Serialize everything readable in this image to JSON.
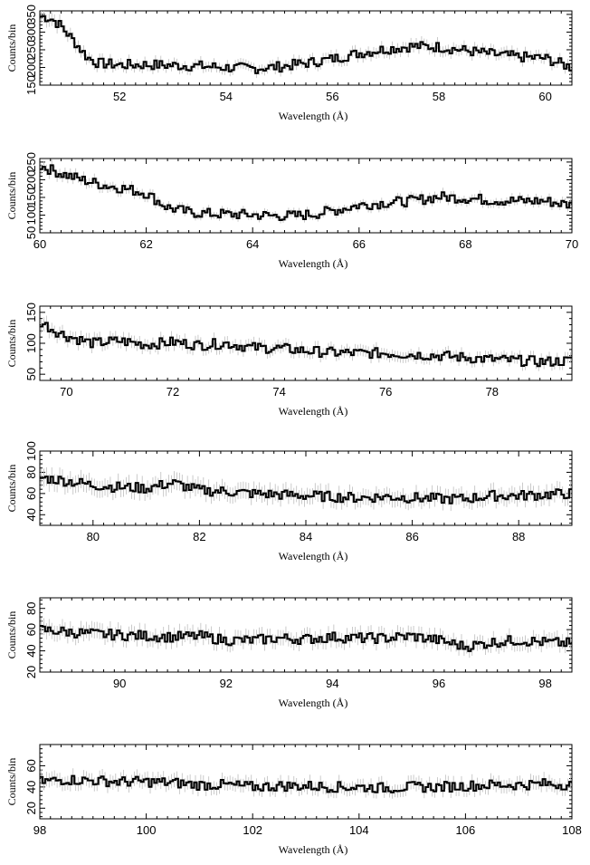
{
  "chart_data": [
    {
      "type": "line",
      "xlabel": "Wavelength (Å)",
      "ylabel": "Counts/bin",
      "xlim": [
        50.5,
        60.5
      ],
      "ylim": [
        150,
        360
      ],
      "xticks": [
        "52",
        "54",
        "56",
        "58",
        "60"
      ],
      "yticks": [
        "150",
        "200",
        "250",
        "300",
        "350"
      ],
      "series": [
        {
          "values": [
            [
              50.5,
              345
            ],
            [
              50.7,
              340
            ],
            [
              50.9,
              318
            ],
            [
              51.0,
              300
            ],
            [
              51.2,
              265
            ],
            [
              51.4,
              228
            ],
            [
              51.6,
              212
            ],
            [
              51.8,
              210
            ],
            [
              52.0,
              207
            ],
            [
              52.5,
              208
            ],
            [
              53.0,
              206
            ],
            [
              53.5,
              204
            ],
            [
              54.0,
              200
            ],
            [
              54.5,
              197
            ],
            [
              55.0,
              202
            ],
            [
              55.5,
              212
            ],
            [
              56.0,
              224
            ],
            [
              56.5,
              240
            ],
            [
              57.0,
              252
            ],
            [
              57.5,
              260
            ],
            [
              58.0,
              258
            ],
            [
              58.5,
              248
            ],
            [
              59.0,
              238
            ],
            [
              59.5,
              230
            ],
            [
              60.0,
              226
            ],
            [
              60.5,
              200
            ]
          ]
        }
      ]
    },
    {
      "type": "line",
      "xlabel": "Wavelength (Å)",
      "ylabel": "Counts/bin",
      "xlim": [
        60,
        70
      ],
      "ylim": [
        50,
        260
      ],
      "xticks": [
        "60",
        "62",
        "64",
        "66",
        "68",
        "70"
      ],
      "yticks": [
        "50",
        "100",
        "150",
        "200",
        "250"
      ],
      "series": [
        {
          "values": [
            [
              60.0,
              240
            ],
            [
              60.4,
              218
            ],
            [
              60.8,
              200
            ],
            [
              61.2,
              185
            ],
            [
              61.6,
              175
            ],
            [
              62.0,
              162
            ],
            [
              62.4,
              122
            ],
            [
              62.8,
              108
            ],
            [
              63.2,
              104
            ],
            [
              63.6,
              102
            ],
            [
              64.0,
              101
            ],
            [
              64.4,
              98
            ],
            [
              64.8,
              98
            ],
            [
              65.2,
              104
            ],
            [
              65.6,
              115
            ],
            [
              66.0,
              128
            ],
            [
              66.5,
              135
            ],
            [
              67.0,
              140
            ],
            [
              67.5,
              152
            ],
            [
              68.0,
              148
            ],
            [
              68.5,
              142
            ],
            [
              69.0,
              140
            ],
            [
              69.5,
              140
            ],
            [
              70.0,
              128
            ]
          ]
        }
      ]
    },
    {
      "type": "line",
      "xlabel": "Wavelength (Å)",
      "ylabel": "Counts/bin",
      "xlim": [
        69.5,
        79.5
      ],
      "ylim": [
        40,
        160
      ],
      "xticks": [
        "70",
        "72",
        "74",
        "76",
        "78"
      ],
      "yticks": [
        "50",
        "100",
        "150"
      ],
      "series": [
        {
          "values": [
            [
              69.5,
              135
            ],
            [
              69.8,
              120
            ],
            [
              70.0,
              112
            ],
            [
              70.5,
              100
            ],
            [
              71.0,
              104
            ],
            [
              71.5,
              98
            ],
            [
              72.0,
              102
            ],
            [
              72.5,
              97
            ],
            [
              73.0,
              100
            ],
            [
              73.5,
              93
            ],
            [
              74.0,
              92
            ],
            [
              74.5,
              88
            ],
            [
              75.0,
              85
            ],
            [
              75.5,
              84
            ],
            [
              76.0,
              84
            ],
            [
              76.5,
              82
            ],
            [
              77.0,
              80
            ],
            [
              77.5,
              77
            ],
            [
              78.0,
              74
            ],
            [
              78.5,
              72
            ],
            [
              79.0,
              70
            ],
            [
              79.5,
              72
            ]
          ]
        }
      ]
    },
    {
      "type": "line",
      "xlabel": "Wavelength (Å)",
      "ylabel": "Counts/bin",
      "xlim": [
        79,
        89
      ],
      "ylim": [
        30,
        100
      ],
      "xticks": [
        "80",
        "82",
        "84",
        "86",
        "88"
      ],
      "yticks": [
        "40",
        "60",
        "80",
        "100"
      ],
      "series": [
        {
          "values": [
            [
              79.0,
              75
            ],
            [
              79.5,
              72
            ],
            [
              80.0,
              68
            ],
            [
              80.5,
              66
            ],
            [
              81.0,
              65
            ],
            [
              81.5,
              70
            ],
            [
              82.0,
              63
            ],
            [
              82.5,
              62
            ],
            [
              83.0,
              60
            ],
            [
              83.5,
              59
            ],
            [
              84.0,
              58
            ],
            [
              84.5,
              57
            ],
            [
              85.0,
              56
            ],
            [
              85.5,
              57
            ],
            [
              86.0,
              56
            ],
            [
              86.5,
              55
            ],
            [
              87.0,
              55
            ],
            [
              87.5,
              58
            ],
            [
              88.0,
              58
            ],
            [
              88.5,
              59
            ],
            [
              89.0,
              60
            ]
          ]
        }
      ]
    },
    {
      "type": "line",
      "xlabel": "Wavelength (Å)",
      "ylabel": "Counts/bin",
      "xlim": [
        88.5,
        98.5
      ],
      "ylim": [
        20,
        90
      ],
      "xticks": [
        "90",
        "92",
        "94",
        "96",
        "98"
      ],
      "yticks": [
        "20",
        "40",
        "60",
        "80"
      ],
      "series": [
        {
          "values": [
            [
              88.5,
              60
            ],
            [
              89.0,
              58
            ],
            [
              89.5,
              56
            ],
            [
              90.0,
              55
            ],
            [
              90.5,
              54
            ],
            [
              91.0,
              53
            ],
            [
              91.5,
              54
            ],
            [
              92.0,
              50
            ],
            [
              92.5,
              50
            ],
            [
              93.0,
              52
            ],
            [
              93.5,
              51
            ],
            [
              94.0,
              53
            ],
            [
              94.5,
              52
            ],
            [
              95.0,
              52
            ],
            [
              95.5,
              54
            ],
            [
              96.0,
              50
            ],
            [
              96.5,
              44
            ],
            [
              97.0,
              48
            ],
            [
              97.5,
              50
            ],
            [
              98.0,
              48
            ],
            [
              98.5,
              47
            ]
          ]
        }
      ]
    },
    {
      "type": "line",
      "xlabel": "Wavelength (Å)",
      "ylabel": "Counts/bin",
      "xlim": [
        98,
        108
      ],
      "ylim": [
        10,
        80
      ],
      "xticks": [
        "98",
        "100",
        "102",
        "104",
        "106",
        "108"
      ],
      "yticks": [
        "20",
        "40",
        "60"
      ],
      "series": [
        {
          "values": [
            [
              98.0,
              45
            ],
            [
              98.5,
              47
            ],
            [
              99.0,
              46
            ],
            [
              99.5,
              45
            ],
            [
              100.0,
              45
            ],
            [
              100.5,
              44
            ],
            [
              101.0,
              42
            ],
            [
              101.5,
              42
            ],
            [
              102.0,
              40
            ],
            [
              102.5,
              41
            ],
            [
              103.0,
              41
            ],
            [
              103.5,
              40
            ],
            [
              104.0,
              40
            ],
            [
              104.5,
              39
            ],
            [
              105.0,
              40
            ],
            [
              105.5,
              40
            ],
            [
              106.0,
              41
            ],
            [
              106.5,
              42
            ],
            [
              107.0,
              42
            ],
            [
              107.5,
              43
            ],
            [
              108.0,
              42
            ]
          ]
        }
      ]
    }
  ]
}
